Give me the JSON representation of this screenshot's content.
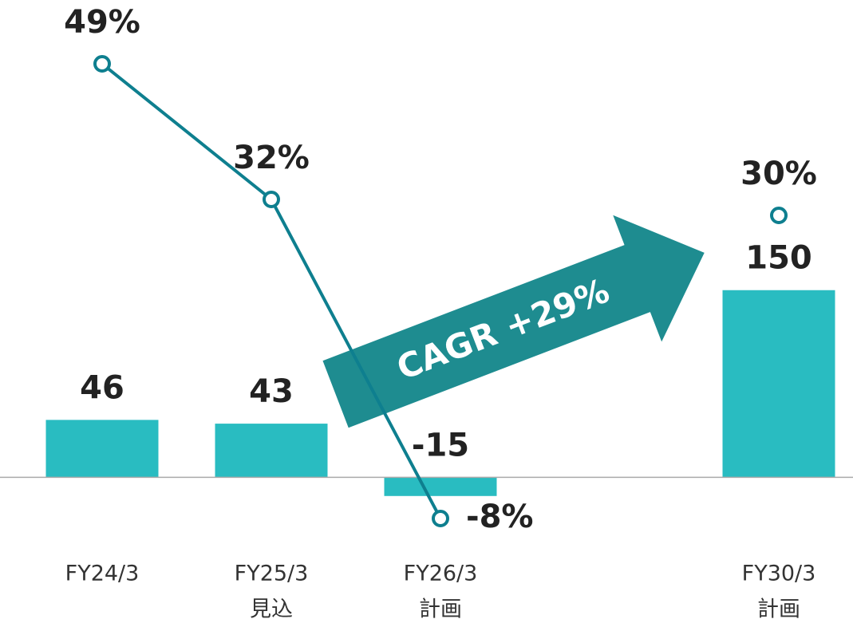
{
  "chart_data": {
    "type": "bar_line",
    "categories": [
      "FY24/3",
      "FY25/3",
      "FY26/3",
      null,
      "FY30/3"
    ],
    "category_notes": [
      null,
      "見込",
      "計画",
      null,
      "計画"
    ],
    "series": [
      {
        "type": "bar",
        "color": "#29bcc1",
        "values": [
          46,
          43,
          -15,
          null,
          150
        ]
      },
      {
        "type": "line",
        "axis": "y2",
        "color": "#0e7f8f",
        "values": [
          49,
          32,
          -8,
          null,
          30
        ],
        "value_labels": [
          "49%",
          "32%",
          "-8%",
          null,
          "30%"
        ]
      }
    ],
    "ylim": [
      -65,
      357
    ],
    "y2lim": [
      -13,
      53
    ],
    "annotation": "CAGR +29%"
  }
}
